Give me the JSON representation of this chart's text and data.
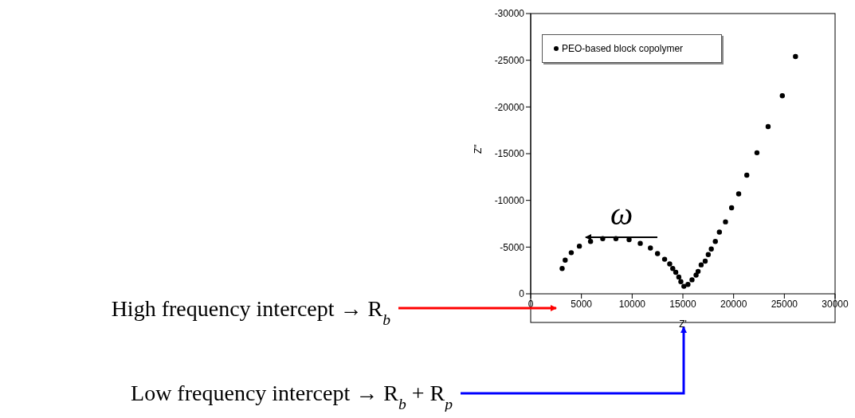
{
  "chart_data": {
    "type": "scatter",
    "xlabel": "Z'",
    "ylabel": "Z''",
    "xlim": [
      0,
      30000
    ],
    "xticks": [
      0,
      5000,
      10000,
      15000,
      20000,
      25000,
      30000
    ],
    "ylim": [
      0,
      -30000
    ],
    "yticks": [
      0,
      -5000,
      -10000,
      -15000,
      -20000,
      -25000,
      -30000
    ],
    "grid": false,
    "legend": "top left",
    "marker": "circle",
    "series": [
      {
        "name": "PEO-based block copolymer",
        "color": "#000000",
        "x": [
          3100,
          3400,
          4000,
          4800,
          5900,
          7100,
          8400,
          9700,
          10800,
          11800,
          12500,
          13200,
          13700,
          14000,
          14300,
          14600,
          14800,
          15100,
          15500,
          15900,
          16300,
          16500,
          16800,
          17200,
          17500,
          17800,
          18200,
          18600,
          19200,
          19800,
          20500,
          21300,
          22300,
          23400,
          24800,
          26100
        ],
        "values": [
          -2700,
          -3600,
          -4400,
          -5100,
          -5600,
          -5900,
          -5900,
          -5800,
          -5400,
          -4900,
          -4300,
          -3700,
          -3200,
          -2700,
          -2300,
          -1800,
          -1300,
          -800,
          -1000,
          -1500,
          -2000,
          -2400,
          -3100,
          -3500,
          -4200,
          -4800,
          -5600,
          -6600,
          -7700,
          -9200,
          -10700,
          -12700,
          -15100,
          -17900,
          -21200,
          -25400
        ]
      }
    ],
    "annotations": [
      "ω",
      "High frequency intercept → R$_{b}$",
      "Low frequency intercept → R$_{b}$ + R$_{p}$"
    ]
  }
}
